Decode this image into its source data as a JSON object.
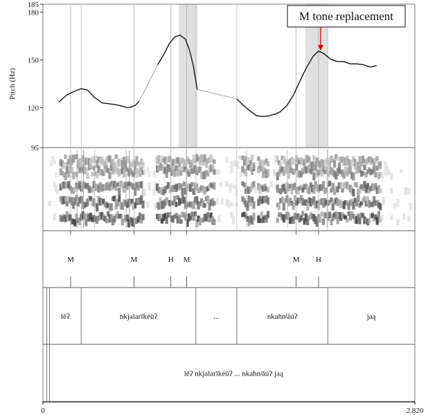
{
  "figure": {
    "y_axis_label": "Pitch (Hz)",
    "y_ticks": [
      "185",
      "180",
      "150",
      "120",
      "95"
    ],
    "x_ticks": [
      "0",
      "2.820"
    ],
    "annotation": "M tone replacement"
  },
  "tones": [
    {
      "label": "M",
      "time": 0.21
    },
    {
      "label": "M",
      "time": 0.69
    },
    {
      "label": "H",
      "time": 0.97
    },
    {
      "label": "M",
      "time": 1.09
    },
    {
      "label": "M",
      "time": 1.92
    },
    {
      "label": "H",
      "time": 2.09
    }
  ],
  "words": [
    {
      "label": "lēʔ",
      "start": 0.05,
      "end": 0.29
    },
    {
      "label": "nkjalarīkéūʔ",
      "start": 0.29,
      "end": 1.16
    },
    {
      "label": "...",
      "start": 1.16,
      "end": 1.47
    },
    {
      "label": "nkahnʲāúʔ",
      "start": 1.47,
      "end": 2.16
    },
    {
      "label": "jaą",
      "start": 2.16,
      "end": 2.82
    }
  ],
  "sentence": {
    "label": "lēʔ nkjalarīkéūʔ ... nkahnʲāúʔ jaą"
  },
  "highlights": [
    {
      "start": 1.03,
      "end": 1.17
    },
    {
      "start": 1.99,
      "end": 2.16
    }
  ],
  "chart_data": {
    "type": "line",
    "title": "",
    "xlabel": "",
    "ylabel": "Pitch (Hz)",
    "xlim": [
      0,
      2.82
    ],
    "ylim": [
      95,
      185
    ],
    "series": [
      {
        "name": "",
        "x": [
          0.12,
          0.18,
          0.23,
          0.29,
          0.34,
          0.39,
          0.45,
          0.5,
          0.55,
          0.6,
          0.64,
          0.67,
          0.7,
          0.73
        ],
        "values": [
          123.5,
          128,
          130,
          132,
          131,
          126.5,
          123,
          122.5,
          122,
          121,
          120,
          120.5,
          121.5,
          124
        ]
      },
      {
        "name": "",
        "x": [
          0.87,
          0.92,
          0.96,
          1.0,
          1.04,
          1.08,
          1.11,
          1.14,
          1.17
        ],
        "values": [
          147,
          154,
          160.5,
          164.5,
          165.5,
          163,
          156.5,
          146.5,
          131.5
        ]
      },
      {
        "name": "",
        "x": [
          1.47,
          1.52,
          1.57,
          1.62,
          1.67,
          1.72,
          1.76
        ],
        "values": [
          125.5,
          121.5,
          118,
          115,
          114.5,
          115,
          116
        ]
      },
      {
        "name": "",
        "x": [
          1.76,
          1.8,
          1.85,
          1.9,
          1.95,
          2.0,
          2.05,
          2.09,
          2.13,
          2.18,
          2.23,
          2.28,
          2.33,
          2.38,
          2.43,
          2.48,
          2.53
        ],
        "values": [
          116,
          117.5,
          121.5,
          128,
          137,
          145.5,
          152.5,
          155.5,
          154,
          150.5,
          149,
          149,
          147.5,
          147.5,
          147,
          145.5,
          146.5
        ]
      }
    ],
    "connectors": [
      {
        "x": [
          0.73,
          0.87
        ],
        "values": [
          124,
          147
        ]
      },
      {
        "x": [
          1.17,
          1.47
        ],
        "values": [
          131.5,
          125.5
        ]
      }
    ]
  }
}
